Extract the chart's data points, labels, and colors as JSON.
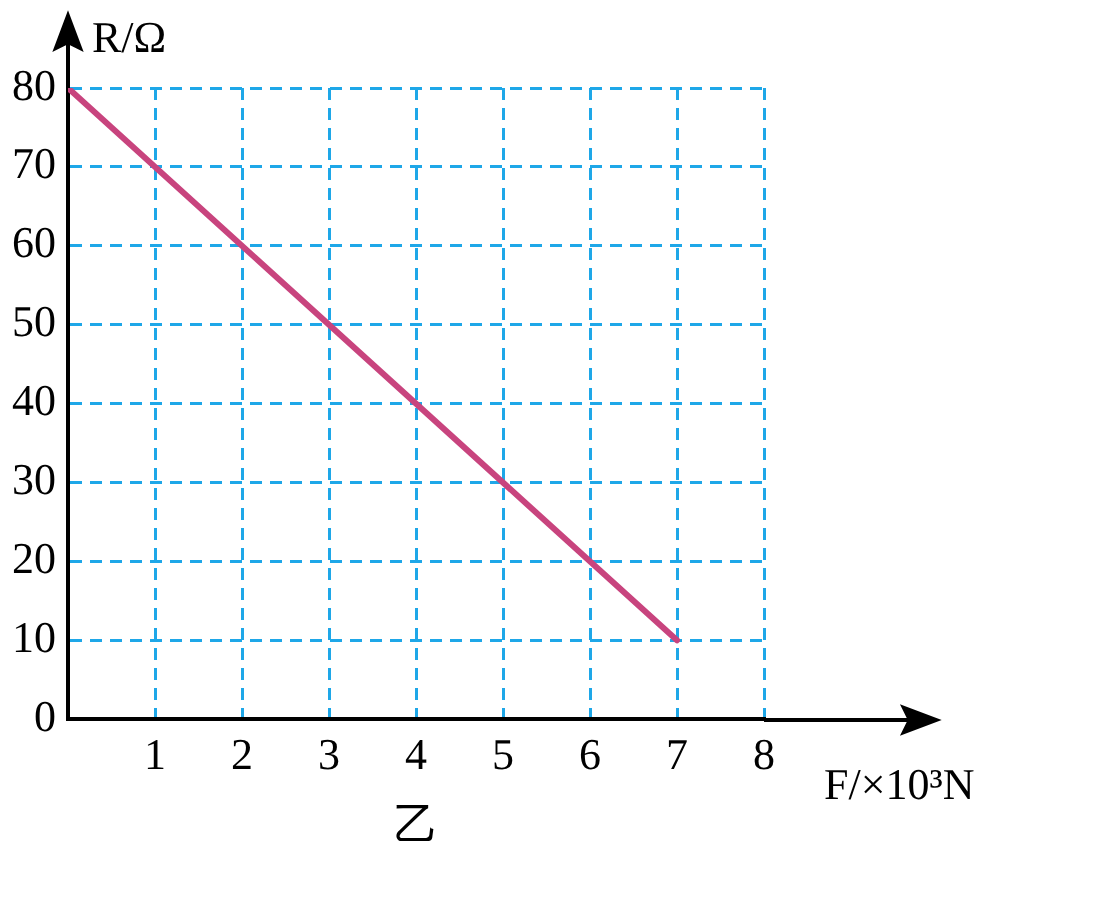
{
  "chart_data": {
    "type": "line",
    "xlabel": "F/×10³N",
    "ylabel": "R/Ω",
    "annotations": [
      "乙"
    ],
    "series": [
      {
        "color": "#c8447e",
        "x": [
          0,
          7
        ],
        "values": [
          80,
          10
        ]
      }
    ],
    "xlim": [
      0,
      8
    ],
    "xticks": [
      1,
      2,
      3,
      4,
      5,
      6,
      7,
      8
    ],
    "ylim": [
      0,
      80
    ],
    "yticks": [
      0,
      10,
      20,
      30,
      40,
      50,
      60,
      70,
      80
    ],
    "grid": true,
    "legend": false,
    "marker": "none",
    "line_style": "solid"
  }
}
